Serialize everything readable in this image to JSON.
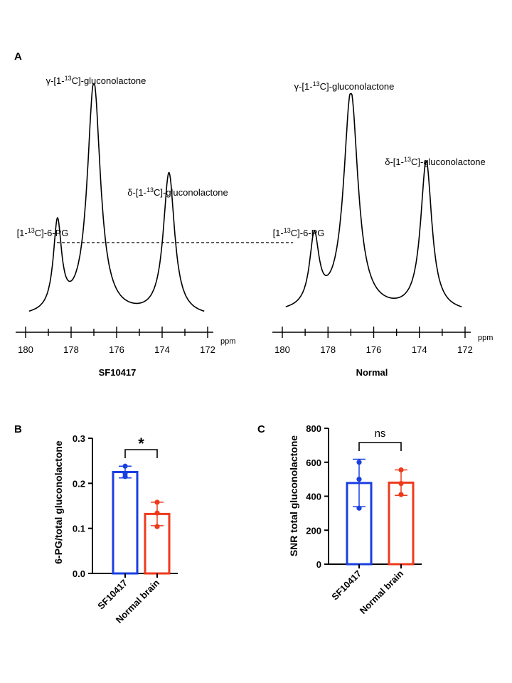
{
  "figure": {
    "panel_a": {
      "letter": "A"
    },
    "panel_b": {
      "letter": "B"
    },
    "panel_c": {
      "letter": "C"
    },
    "spectrum_xlabel": "ppm",
    "reference_line": "dashed line at [1-13C]-6-PG peak height of SF10417 spectrum"
  },
  "chart_data": [
    {
      "type": "line",
      "panel": "A-left",
      "title": "SF10417",
      "xlabel": "ppm",
      "xlim": [
        180,
        172
      ],
      "xticks": [
        180,
        178,
        176,
        174,
        172
      ],
      "ylim": [
        0,
        1
      ],
      "peaks": [
        {
          "label_pre": "[1-",
          "label_sup": "13",
          "label_post": "C]-6-PG",
          "ppm": 178.6,
          "height": 0.38,
          "width": 0.22
        },
        {
          "label_pre": "γ-[1-",
          "label_sup": "13",
          "label_post": "C]-gluconolactone",
          "ppm": 177.0,
          "height": 1.0,
          "width": 0.35
        },
        {
          "label_pre": "δ-[1-",
          "label_sup": "13",
          "label_post": "C]-gluconolactone",
          "ppm": 173.7,
          "height": 0.61,
          "width": 0.3
        }
      ],
      "baseline": 0.02
    },
    {
      "type": "line",
      "panel": "A-right",
      "title": "Normal",
      "xlabel": "ppm",
      "xlim": [
        180,
        172
      ],
      "xticks": [
        180,
        178,
        176,
        174,
        172
      ],
      "ylim": [
        0,
        1
      ],
      "peaks": [
        {
          "label_pre": "[1-",
          "label_sup": "13",
          "label_post": "C]-6-PG",
          "ppm": 178.6,
          "height": 0.32,
          "width": 0.25
        },
        {
          "label_pre": "γ-[1-",
          "label_sup": "13",
          "label_post": "C]-gluconolactone",
          "ppm": 177.0,
          "height": 1.0,
          "width": 0.38
        },
        {
          "label_pre": "δ-[1-",
          "label_sup": "13",
          "label_post": "C]-gluconolactone",
          "ppm": 173.7,
          "height": 0.68,
          "width": 0.3
        }
      ],
      "baseline": 0.02
    },
    {
      "type": "bar",
      "panel": "B",
      "ylabel": "6-PG/total gluconolactone",
      "ylim": [
        0,
        0.3
      ],
      "yticks": [
        "0.0",
        "0.1",
        "0.2",
        "0.3"
      ],
      "yticks_values": [
        0,
        0.1,
        0.2,
        0.3
      ],
      "categories": [
        "SF10417",
        "Normal brain"
      ],
      "values": [
        0.225,
        0.132
      ],
      "errors": [
        0.013,
        0.026
      ],
      "points": [
        [
          0.238,
          0.215,
          0.222
        ],
        [
          0.158,
          0.104,
          0.134
        ]
      ],
      "colors": [
        "#1a3fe0",
        "#ee3a1c"
      ],
      "significance": "*"
    },
    {
      "type": "bar",
      "panel": "C",
      "ylabel": "SNR total gluconolactone",
      "ylim": [
        0,
        800
      ],
      "yticks": [
        "0",
        "200",
        "400",
        "600",
        "800"
      ],
      "yticks_values": [
        0,
        200,
        400,
        600,
        800
      ],
      "categories": [
        "SF10417",
        "Normal brain"
      ],
      "values": [
        478,
        480
      ],
      "errors": [
        140,
        75
      ],
      "points": [
        [
          600,
          330,
          500
        ],
        [
          555,
          410,
          475
        ]
      ],
      "colors": [
        "#1a3fe0",
        "#ee3a1c"
      ],
      "significance": "ns"
    }
  ]
}
